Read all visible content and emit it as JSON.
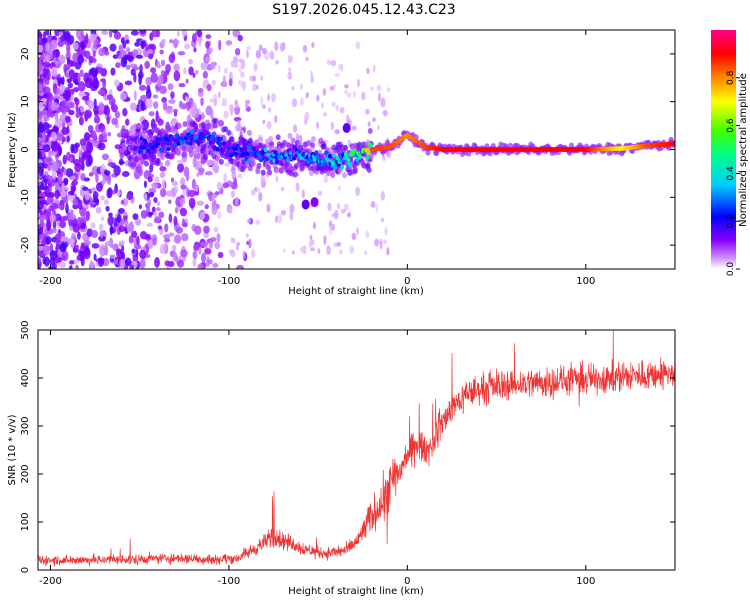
{
  "figure": {
    "title": "S197.2026.045.12.43.C23"
  },
  "chart_data": [
    {
      "type": "heatmap",
      "title": "S197.2026.045.12.43.C23",
      "xlabel": "Height of straight line (km)",
      "ylabel": "Frequency (Hz)",
      "xlim": [
        -207,
        150
      ],
      "ylim": [
        -25,
        25
      ],
      "xticks": [
        -200,
        -100,
        0,
        100
      ],
      "yticks": [
        -20,
        -10,
        0,
        10,
        20
      ],
      "colorbar": {
        "label": "Normalized spectral amplitude",
        "range": [
          0,
          1
        ],
        "ticks": [
          "0.0",
          "0.2",
          "0.4",
          "0.6",
          "0.8"
        ],
        "colormap": [
          "#ffffff",
          "#8800ff",
          "#0000ff",
          "#00ccff",
          "#00ff88",
          "#44ff00",
          "#ffff00",
          "#ff8800",
          "#ff0000",
          "#ff0088"
        ]
      },
      "tone_track": {
        "description_points": [
          {
            "x": -150,
            "freq": 0.5,
            "amp": 0.2
          },
          {
            "x": -115,
            "freq": 3.0,
            "amp": 0.25
          },
          {
            "x": -100,
            "freq": 0.0,
            "amp": 0.2
          },
          {
            "x": -80,
            "freq": -1.5,
            "amp": 0.3
          },
          {
            "x": -60,
            "freq": -1.0,
            "amp": 0.3
          },
          {
            "x": -40,
            "freq": -2.5,
            "amp": 0.35
          },
          {
            "x": -25,
            "freq": -1.0,
            "amp": 0.5
          },
          {
            "x": -20,
            "freq": 0.0,
            "amp": 0.85
          },
          {
            "x": -10,
            "freq": 0.5,
            "amp": 0.85
          },
          {
            "x": 0,
            "freq": 3.0,
            "amp": 0.8
          },
          {
            "x": 10,
            "freq": 0.5,
            "amp": 0.85
          },
          {
            "x": 20,
            "freq": 0.0,
            "amp": 0.9
          },
          {
            "x": 100,
            "freq": 0.0,
            "amp": 0.9
          },
          {
            "x": 120,
            "freq": 0.2,
            "amp": 0.7
          },
          {
            "x": 135,
            "freq": 0.8,
            "amp": 0.85
          },
          {
            "x": 150,
            "freq": 1.2,
            "amp": 0.9
          }
        ]
      }
    },
    {
      "type": "line",
      "xlabel": "Height of straight line (km)",
      "ylabel": "SNR (10 * v/v)",
      "xlim": [
        -207,
        150
      ],
      "ylim": [
        0,
        500
      ],
      "xticks": [
        -200,
        -100,
        0,
        100
      ],
      "yticks": [
        0,
        100,
        200,
        300,
        400,
        500
      ],
      "color": "#ee3333",
      "series": [
        {
          "name": "SNR",
          "trend_points": [
            {
              "x": -207,
              "y": 20
            },
            {
              "x": -150,
              "y": 22
            },
            {
              "x": -130,
              "y": 25
            },
            {
              "x": -110,
              "y": 22
            },
            {
              "x": -95,
              "y": 25
            },
            {
              "x": -85,
              "y": 45
            },
            {
              "x": -75,
              "y": 70
            },
            {
              "x": -65,
              "y": 55
            },
            {
              "x": -55,
              "y": 40
            },
            {
              "x": -45,
              "y": 35
            },
            {
              "x": -35,
              "y": 40
            },
            {
              "x": -28,
              "y": 60
            },
            {
              "x": -22,
              "y": 100
            },
            {
              "x": -15,
              "y": 140
            },
            {
              "x": -10,
              "y": 170
            },
            {
              "x": -5,
              "y": 200
            },
            {
              "x": 0,
              "y": 240
            },
            {
              "x": 5,
              "y": 260
            },
            {
              "x": 12,
              "y": 250
            },
            {
              "x": 17,
              "y": 290
            },
            {
              "x": 25,
              "y": 340
            },
            {
              "x": 35,
              "y": 370
            },
            {
              "x": 50,
              "y": 385
            },
            {
              "x": 70,
              "y": 390
            },
            {
              "x": 90,
              "y": 395
            },
            {
              "x": 110,
              "y": 400
            },
            {
              "x": 130,
              "y": 405
            },
            {
              "x": 150,
              "y": 410
            }
          ]
        }
      ]
    }
  ]
}
